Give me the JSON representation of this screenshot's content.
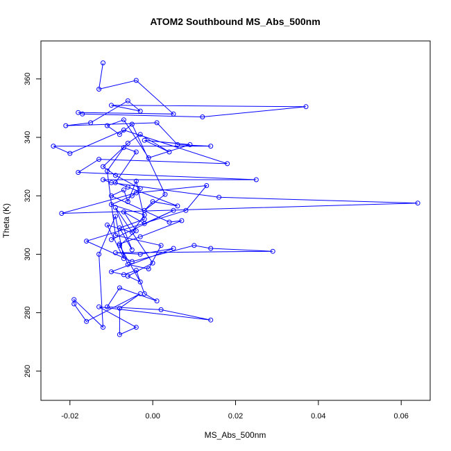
{
  "chart_data": {
    "type": "scatter",
    "title": "ATOM2 Southbound MS_Abs_500nm",
    "xlabel": "MS_Abs_500nm",
    "ylabel": "Theta (K)",
    "xlim": [
      -0.027,
      0.067
    ],
    "ylim": [
      250,
      373
    ],
    "xticks": [
      -0.02,
      0.0,
      0.02,
      0.04,
      0.06
    ],
    "xtick_labels": [
      "-0.02",
      "0.00",
      "0.02",
      "0.04",
      "0.06"
    ],
    "yticks": [
      260,
      280,
      300,
      320,
      340,
      360
    ],
    "ytick_labels": [
      "260",
      "280",
      "300",
      "320",
      "340",
      "360"
    ],
    "connected": true,
    "marker": "open-circle",
    "color": "#0000ff",
    "series": [
      {
        "name": "ATOM2 Southbound",
        "x": [
          -0.012,
          -0.013,
          -0.004,
          0.005,
          -0.018,
          -0.017,
          0.012,
          0.037,
          -0.01,
          -0.003,
          -0.006,
          -0.015,
          -0.021,
          0.001,
          0.006,
          0.014,
          -0.024,
          -0.02,
          -0.007,
          0.018,
          -0.013,
          -0.018,
          0.025,
          -0.012,
          -0.01,
          0.016,
          0.064,
          -0.022,
          -0.004,
          0.013,
          0.008,
          -0.016,
          -0.005,
          0.01,
          0.014,
          0.029,
          -0.009,
          -0.003,
          0.005,
          -0.01,
          -0.007,
          -0.004,
          -0.002,
          0.001,
          -0.008,
          -0.011,
          0.002,
          0.014,
          -0.013,
          -0.004,
          -0.008,
          -0.008,
          -0.003,
          -0.016,
          -0.019,
          -0.019,
          -0.012,
          -0.013,
          -0.009,
          -0.007,
          -0.011,
          -0.005,
          -0.002,
          -0.01,
          -0.005,
          -0.003,
          -0.009,
          -0.012,
          -0.006,
          -0.003,
          0.004,
          -0.002,
          0.009,
          -0.001,
          -0.007,
          -0.011,
          -0.008,
          -0.005,
          0.003,
          -0.002,
          0.0,
          0.006,
          -0.006,
          -0.009,
          -0.004,
          -0.007,
          -0.011,
          -0.009,
          0.002,
          -0.001,
          -0.006,
          -0.008,
          -0.003,
          0.007,
          0.004,
          -0.01,
          -0.007,
          -0.006,
          -0.004,
          -0.002,
          -0.008,
          -0.005,
          -0.009,
          0.0,
          -0.006,
          -0.003,
          -0.008,
          -0.004,
          -0.007,
          -0.002,
          0.005,
          -0.01
        ],
        "y": [
          365.5,
          356.5,
          359.5,
          348.0,
          348.5,
          348.0,
          347.0,
          350.5,
          351.0,
          349.0,
          352.5,
          345.0,
          344.0,
          345.0,
          337.5,
          337.0,
          337.0,
          334.5,
          342.5,
          331.0,
          332.5,
          328.0,
          325.5,
          325.5,
          324.5,
          319.5,
          317.5,
          314.0,
          321.0,
          323.5,
          315.0,
          304.5,
          297.5,
          303.0,
          302.0,
          301.0,
          300.5,
          300.0,
          302.0,
          294.0,
          293.0,
          294.5,
          286.5,
          284.0,
          288.5,
          282.0,
          281.0,
          277.5,
          282.0,
          275.0,
          272.5,
          281.5,
          286.5,
          277.0,
          283.0,
          284.5,
          275.0,
          300.0,
          313.0,
          298.5,
          310.0,
          307.5,
          313.5,
          317.0,
          320.0,
          322.5,
          327.0,
          330.0,
          338.0,
          341.0,
          335.0,
          339.0,
          337.5,
          333.0,
          346.0,
          344.0,
          341.0,
          344.5,
          320.5,
          315.0,
          318.0,
          316.5,
          323.0,
          324.5,
          335.0,
          336.5,
          328.5,
          306.5,
          303.0,
          295.0,
          296.5,
          303.5,
          306.0,
          311.5,
          311.0,
          320.0,
          322.0,
          318.0,
          325.0,
          312.0,
          309.0,
          301.5,
          316.0,
          297.0,
          292.5,
          290.5,
          303.0,
          308.0,
          314.5,
          310.5,
          315.0,
          305.0
        ]
      }
    ]
  }
}
